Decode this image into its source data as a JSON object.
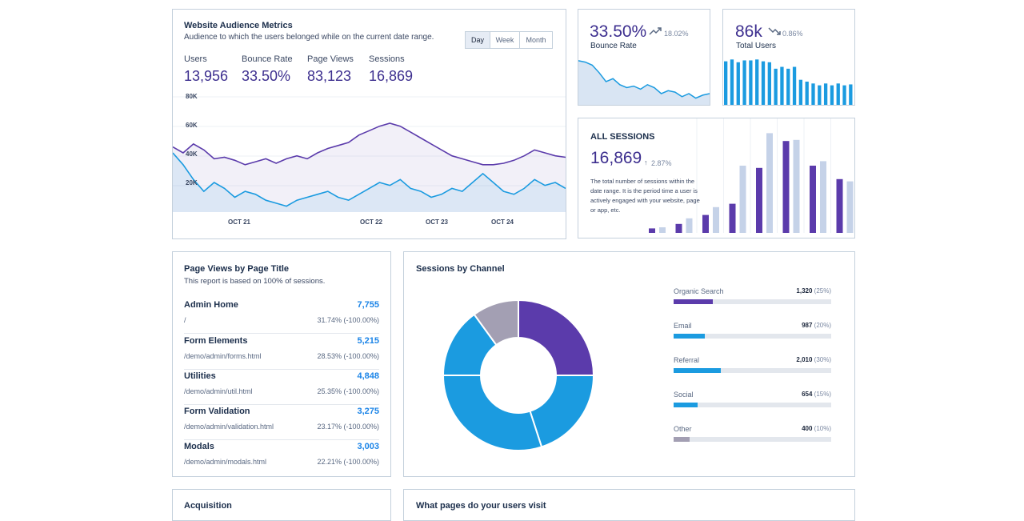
{
  "audience": {
    "title": "Website Audience Metrics",
    "subtitle": "Audience to which the users belonged while on the current date range.",
    "ranges": [
      "Day",
      "Week",
      "Month"
    ],
    "active_range": "Day",
    "metrics": [
      {
        "label": "Users",
        "value": "13,956"
      },
      {
        "label": "Bounce Rate",
        "value": "33.50%"
      },
      {
        "label": "Page Views",
        "value": "83,123"
      },
      {
        "label": "Sessions",
        "value": "16,869"
      }
    ]
  },
  "bounce": {
    "value": "33.50%",
    "change": "18.02%",
    "label": "Bounce Rate"
  },
  "total_users": {
    "value": "86k",
    "change": "0.86%",
    "label": "Total Users"
  },
  "all_sessions": {
    "title": "ALL SESSIONS",
    "value": "16,869",
    "change": "2.87%",
    "description": "The total number of sessions within the date range. It is the period time a user is actively engaged with your website, page or app, etc."
  },
  "page_views": {
    "title": "Page Views by Page Title",
    "subtitle": "This report is based on 100% of sessions.",
    "rows": [
      {
        "name": "Admin Home",
        "path": "/",
        "value": "7,755",
        "pct": "31.74% (-100.00%)"
      },
      {
        "name": "Form Elements",
        "path": "/demo/admin/forms.html",
        "value": "5,215",
        "pct": "28.53% (-100.00%)"
      },
      {
        "name": "Utilities",
        "path": "/demo/admin/util.html",
        "value": "4,848",
        "pct": "25.35% (-100.00%)"
      },
      {
        "name": "Form Validation",
        "path": "/demo/admin/validation.html",
        "value": "3,275",
        "pct": "23.17% (-100.00%)"
      },
      {
        "name": "Modals",
        "path": "/demo/admin/modals.html",
        "value": "3,003",
        "pct": "22.21% (-100.00%)"
      }
    ]
  },
  "sessions_channel": {
    "title": "Sessions by Channel",
    "channels": [
      {
        "label": "Organic Search",
        "value": "1,320",
        "pct": "(25%)",
        "fraction": 0.25,
        "color": "#5b3bab"
      },
      {
        "label": "Email",
        "value": "987",
        "pct": "(20%)",
        "fraction": 0.2,
        "color": "#1b9be0"
      },
      {
        "label": "Referral",
        "value": "2,010",
        "pct": "(30%)",
        "fraction": 0.3,
        "color": "#1b9be0"
      },
      {
        "label": "Social",
        "value": "654",
        "pct": "(15%)",
        "fraction": 0.15,
        "color": "#1b9be0"
      },
      {
        "label": "Other",
        "value": "400",
        "pct": "(10%)",
        "fraction": 0.1,
        "color": "#a39fb3"
      }
    ]
  },
  "acquisition": {
    "title": "Acquisition"
  },
  "what_pages": {
    "title": "What pages do your users visit"
  },
  "colors": {
    "purple": "#5b3bab",
    "blue": "#1b9be0",
    "light": "#c5d2e8",
    "gray": "#a39fb3"
  },
  "chart_data": [
    {
      "type": "line",
      "title": "",
      "x_ticks": [
        "OCT 21",
        "OCT 22",
        "OCT 23",
        "OCT 24"
      ],
      "y_ticks": [
        "20K",
        "40K",
        "60K",
        "80K"
      ],
      "ylim": [
        0,
        80000
      ],
      "series": [
        {
          "values": [
            44,
            40,
            46,
            42,
            36,
            37,
            35,
            32,
            34,
            36,
            33,
            36,
            38,
            36,
            40,
            43,
            45,
            47,
            52,
            55,
            58,
            60,
            58,
            54,
            50,
            46,
            42,
            38,
            36,
            34,
            32,
            32,
            33,
            35,
            38,
            42,
            40,
            38,
            37
          ]
        },
        {
          "values": [
            40,
            32,
            22,
            14,
            20,
            16,
            10,
            14,
            12,
            8,
            6,
            4,
            8,
            10,
            12,
            14,
            10,
            8,
            12,
            16,
            20,
            18,
            22,
            16,
            14,
            10,
            12,
            16,
            14,
            20,
            26,
            20,
            14,
            12,
            16,
            22,
            18,
            20,
            16
          ]
        }
      ]
    },
    {
      "type": "area",
      "title": "",
      "series": [
        {
          "values": [
            30,
            29,
            27,
            22,
            16,
            18,
            14,
            12,
            13,
            11,
            14,
            12,
            8,
            10,
            9,
            6,
            8,
            5,
            7,
            8
          ]
        }
      ]
    },
    {
      "type": "bar",
      "title": "",
      "series": [
        {
          "values": [
            48,
            50,
            47,
            49,
            49,
            50,
            48,
            47,
            40,
            42,
            40,
            42,
            28,
            26,
            24,
            22,
            24,
            22,
            24,
            22,
            23
          ]
        }
      ]
    },
    {
      "type": "bar",
      "title": "",
      "series": [
        {
          "values": [
            4,
            8,
            16,
            26,
            58,
            82,
            60,
            48,
            49
          ]
        },
        {
          "values": [
            5,
            13,
            23,
            60,
            89,
            83,
            64,
            46,
            62
          ]
        }
      ]
    },
    {
      "type": "pie",
      "title": "",
      "series": [
        {
          "values": [
            25,
            20,
            30,
            15,
            10
          ]
        }
      ]
    }
  ]
}
